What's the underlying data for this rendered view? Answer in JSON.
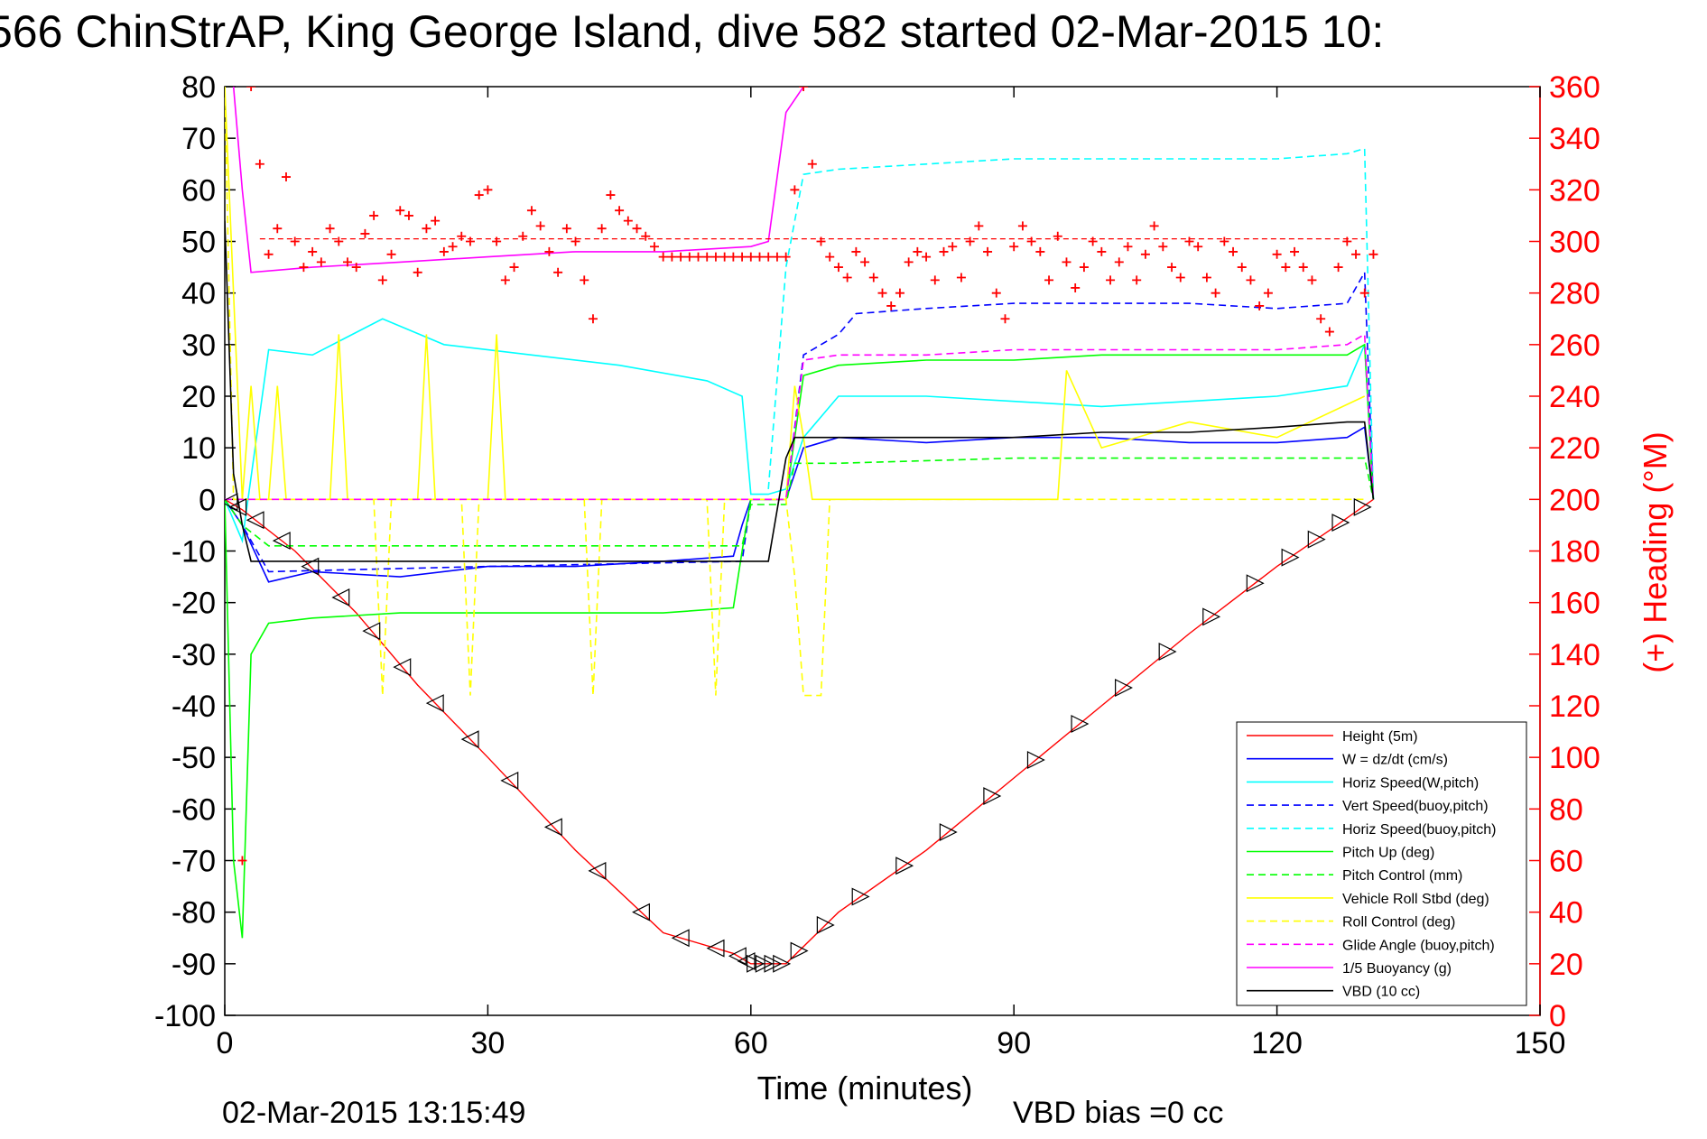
{
  "chart_data": {
    "type": "line",
    "title": "566 ChinStrAP, King George Island, dive 582 started 02-Mar-2015 10:",
    "xlabel": "Time (minutes)",
    "ylabel_right": "(+) Heading (°M)",
    "xlim": [
      0,
      150
    ],
    "ylim_left": [
      -100,
      80
    ],
    "ylim_right": [
      0,
      360
    ],
    "x_ticks": [
      "0",
      "30",
      "60",
      "90",
      "120",
      "150"
    ],
    "y_ticks_left": [
      "80",
      "70",
      "60",
      "50",
      "40",
      "30",
      "20",
      "10",
      "0",
      "-10",
      "-20",
      "-30",
      "-40",
      "-50",
      "-60",
      "-70",
      "-80",
      "-90",
      "-100"
    ],
    "y_ticks_right": [
      "360",
      "340",
      "320",
      "300",
      "280",
      "260",
      "240",
      "220",
      "200",
      "180",
      "160",
      "140",
      "120",
      "100",
      "80",
      "60",
      "40",
      "20",
      "0"
    ],
    "grid": false,
    "legend_position": "bottom-right",
    "series": [
      {
        "name": "Height (5m)",
        "color": "#ff0000",
        "style": "solid",
        "x": [
          0,
          2,
          8,
          15,
          22,
          30,
          40,
          50,
          58,
          60,
          62,
          64,
          70,
          80,
          90,
          100,
          110,
          120,
          126,
          131
        ],
        "y": [
          0,
          -2,
          -10,
          -22,
          -36,
          -50,
          -68,
          -84,
          -88,
          -90,
          -90,
          -90,
          -80,
          -68,
          -54,
          -40,
          -26,
          -13,
          -6,
          0
        ]
      },
      {
        "name": "W = dz/dt (cm/s)",
        "color": "#0000ff",
        "style": "solid",
        "x": [
          0,
          2,
          5,
          10,
          20,
          30,
          40,
          50,
          58,
          59,
          60,
          62,
          64,
          66,
          70,
          80,
          90,
          100,
          110,
          120,
          128,
          130,
          131
        ],
        "y": [
          0,
          -5,
          -16,
          -14,
          -15,
          -13,
          -13,
          -12,
          -11,
          -5,
          0,
          0,
          0,
          10,
          12,
          11,
          12,
          12,
          11,
          11,
          12,
          14,
          0
        ]
      },
      {
        "name": "Horiz Speed(W,pitch)",
        "color": "#00ffff",
        "style": "solid",
        "x": [
          0,
          2,
          5,
          10,
          18,
          25,
          35,
          45,
          55,
          59,
          60,
          62,
          64,
          66,
          70,
          80,
          90,
          100,
          110,
          120,
          128,
          130,
          131
        ],
        "y": [
          0,
          -8,
          29,
          28,
          35,
          30,
          28,
          26,
          23,
          20,
          1,
          1,
          2,
          12,
          20,
          20,
          19,
          18,
          19,
          20,
          22,
          30,
          0
        ]
      },
      {
        "name": "Vert Speed(buoy,pitch)",
        "color": "#0000ff",
        "style": "dashed",
        "x": [
          0,
          2,
          5,
          30,
          59,
          60,
          62,
          64,
          66,
          70,
          72,
          80,
          90,
          100,
          110,
          120,
          128,
          130,
          131
        ],
        "y": [
          0,
          -5,
          -14,
          -13,
          -12,
          0,
          0,
          0,
          28,
          32,
          36,
          37,
          38,
          38,
          38,
          37,
          38,
          44,
          0
        ]
      },
      {
        "name": "Horiz Speed(buoy,pitch)",
        "color": "#00ffff",
        "style": "dashed",
        "x": [
          62,
          64,
          66,
          70,
          80,
          90,
          100,
          110,
          120,
          128,
          130,
          131
        ],
        "y": [
          2,
          45,
          63,
          64,
          65,
          66,
          66,
          66,
          66,
          67,
          68,
          0
        ]
      },
      {
        "name": "Pitch Up (deg)",
        "color": "#00ff00",
        "style": "solid",
        "x": [
          0,
          1,
          2,
          3,
          5,
          10,
          20,
          30,
          40,
          50,
          58,
          59,
          60,
          62,
          64,
          66,
          70,
          80,
          90,
          100,
          110,
          120,
          128,
          130,
          131
        ],
        "y": [
          0,
          -70,
          -85,
          -30,
          -24,
          -23,
          -22,
          -22,
          -22,
          -22,
          -21,
          -10,
          0,
          0,
          0,
          24,
          26,
          27,
          27,
          28,
          28,
          28,
          28,
          30,
          0
        ]
      },
      {
        "name": "Pitch Control (mm)",
        "color": "#00ff00",
        "style": "dashed",
        "x": [
          0,
          2,
          5,
          30,
          59,
          60,
          64,
          65,
          70,
          90,
          130,
          131
        ],
        "y": [
          0,
          -5,
          -9,
          -9,
          -9,
          -1,
          -1,
          7,
          7,
          8,
          8,
          0
        ]
      },
      {
        "name": "Vehicle Roll Stbd (deg)",
        "color": "#ffff00",
        "style": "solid",
        "x": [
          0,
          1,
          2,
          3,
          4,
          5,
          6,
          7,
          12,
          13,
          14,
          15,
          16,
          22,
          23,
          24,
          30,
          31,
          32,
          40,
          58,
          60,
          64,
          65,
          66,
          67,
          70,
          80,
          90,
          95,
          96,
          100,
          110,
          120,
          130
        ],
        "y": [
          80,
          40,
          0,
          22,
          0,
          0,
          22,
          0,
          0,
          32,
          0,
          0,
          0,
          0,
          32,
          0,
          0,
          32,
          0,
          0,
          0,
          0,
          0,
          22,
          12,
          0,
          0,
          0,
          0,
          0,
          25,
          10,
          15,
          12,
          20
        ]
      },
      {
        "name": "Roll Control (deg)",
        "color": "#ffff00",
        "style": "dashed",
        "x": [
          0,
          1,
          2,
          17,
          18,
          19,
          27,
          28,
          29,
          41,
          42,
          43,
          55,
          56,
          57,
          64,
          65,
          66,
          68,
          69,
          70,
          90,
          130
        ],
        "y": [
          80,
          0,
          0,
          0,
          -38,
          0,
          0,
          -38,
          0,
          0,
          -38,
          0,
          0,
          -38,
          0,
          0,
          -15,
          -38,
          -38,
          0,
          0,
          0,
          0
        ]
      },
      {
        "name": "Glide Angle (buoy,pitch)",
        "color": "#ff00ff",
        "style": "dashed",
        "x": [
          0,
          2,
          30,
          60,
          64,
          66,
          70,
          80,
          90,
          100,
          110,
          120,
          128,
          130,
          131
        ],
        "y": [
          0,
          0,
          0,
          0,
          0,
          27,
          28,
          28,
          29,
          29,
          29,
          29,
          30,
          32,
          0
        ]
      },
      {
        "name": "1/5 Buoyancy (g)",
        "color": "#ff00ff",
        "style": "solid",
        "x": [
          1,
          2,
          3,
          10,
          20,
          30,
          40,
          50,
          60,
          62,
          64,
          66
        ],
        "y": [
          80,
          60,
          44,
          45,
          46,
          47,
          48,
          48,
          49,
          50,
          75,
          80
        ]
      },
      {
        "name": "VBD (10 cc)",
        "color": "#000000",
        "style": "solid",
        "x": [
          0,
          1,
          2,
          3,
          10,
          30,
          50,
          62,
          64,
          65,
          70,
          80,
          90,
          100,
          110,
          120,
          128,
          130,
          131
        ],
        "y": [
          54,
          5,
          -5,
          -12,
          -12,
          -12,
          -12,
          -12,
          8,
          12,
          12,
          12,
          12,
          13,
          13,
          14,
          15,
          15,
          0
        ]
      }
    ],
    "heading_series": {
      "name": "(+) Heading",
      "color": "#ff0000",
      "marker": "+",
      "axis": "right",
      "reference_line": 301,
      "x": [
        2,
        3,
        4,
        5,
        6,
        7,
        8,
        9,
        10,
        11,
        12,
        13,
        14,
        15,
        16,
        17,
        18,
        19,
        20,
        21,
        22,
        23,
        24,
        25,
        26,
        27,
        28,
        29,
        30,
        31,
        32,
        33,
        34,
        35,
        36,
        37,
        38,
        39,
        40,
        41,
        42,
        43,
        44,
        45,
        46,
        47,
        48,
        49,
        50,
        51,
        52,
        53,
        54,
        55,
        56,
        57,
        58,
        59,
        60,
        61,
        62,
        63,
        64,
        65,
        66,
        67,
        68,
        69,
        70,
        71,
        72,
        73,
        74,
        75,
        76,
        77,
        78,
        79,
        80,
        81,
        82,
        83,
        84,
        85,
        86,
        87,
        88,
        89,
        90,
        91,
        92,
        93,
        94,
        95,
        96,
        97,
        98,
        99,
        100,
        101,
        102,
        103,
        104,
        105,
        106,
        107,
        108,
        109,
        110,
        111,
        112,
        113,
        114,
        115,
        116,
        117,
        118,
        119,
        120,
        121,
        122,
        123,
        124,
        125,
        126,
        127,
        128,
        129,
        130,
        131
      ],
      "y": [
        60,
        360,
        330,
        295,
        305,
        325,
        300,
        290,
        296,
        292,
        305,
        300,
        292,
        290,
        303,
        310,
        285,
        295,
        312,
        310,
        288,
        305,
        308,
        296,
        298,
        302,
        300,
        318,
        320,
        300,
        285,
        290,
        302,
        312,
        306,
        296,
        288,
        305,
        300,
        285,
        270,
        305,
        318,
        312,
        308,
        305,
        302,
        298,
        294,
        294,
        294,
        294,
        294,
        294,
        294,
        294,
        294,
        294,
        294,
        294,
        294,
        294,
        294,
        320,
        360,
        330,
        300,
        294,
        290,
        286,
        296,
        292,
        286,
        280,
        275,
        280,
        292,
        296,
        294,
        285,
        296,
        298,
        286,
        300,
        306,
        296,
        280,
        270,
        298,
        306,
        300,
        296,
        285,
        302,
        292,
        282,
        290,
        300,
        296,
        285,
        292,
        298,
        285,
        295,
        306,
        298,
        290,
        286,
        300,
        298,
        286,
        280,
        300,
        296,
        290,
        285,
        275,
        280,
        295,
        290,
        296,
        290,
        285,
        270,
        265,
        290,
        300,
        295,
        280,
        295
      ]
    }
  },
  "footer": {
    "timestamp": "02-Mar-2015 13:15:49",
    "vbd_bias": "VBD bias =0 cc"
  }
}
